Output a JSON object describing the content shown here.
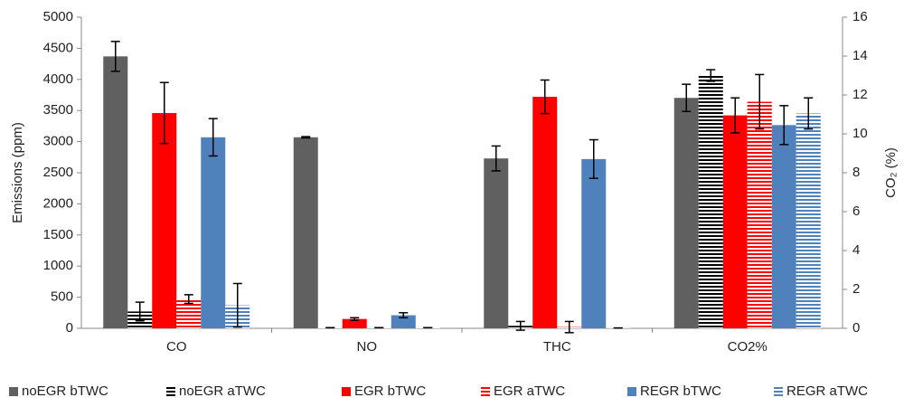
{
  "chart_data": {
    "type": "bar",
    "categories": [
      "CO",
      "NO",
      "THC",
      "CO2%"
    ],
    "category_axes": [
      "y",
      "y",
      "y",
      "y2"
    ],
    "ylabel": "Emissions (ppm)",
    "y2label": "CO₂ (%)",
    "ylim": [
      0,
      5000
    ],
    "yticks": [
      0,
      500,
      1000,
      1500,
      2000,
      2500,
      3000,
      3500,
      4000,
      4500,
      5000
    ],
    "y2lim": [
      0,
      16
    ],
    "y2ticks": [
      0,
      2,
      4,
      6,
      8,
      10,
      12,
      14,
      16
    ],
    "legend": "bottom",
    "series": [
      {
        "name": "noEGR bTWC",
        "color": "#606060",
        "pattern": "solid",
        "values": [
          4370,
          3070,
          2730,
          11.85
        ],
        "errors": [
          240,
          10,
          200,
          0.7
        ]
      },
      {
        "name": "noEGR aTWC",
        "color": "#000000",
        "pattern": "stripes",
        "values": [
          270,
          10,
          40,
          13.0
        ],
        "errors": [
          150,
          0,
          70,
          0.3
        ]
      },
      {
        "name": "EGR bTWC",
        "color": "#ff0000",
        "pattern": "solid",
        "values": [
          3460,
          150,
          3720,
          10.95
        ],
        "errors": [
          490,
          20,
          270,
          0.9
        ]
      },
      {
        "name": "EGR aTWC",
        "color": "#ff0000",
        "pattern": "stripes",
        "values": [
          470,
          10,
          20,
          11.65
        ],
        "errors": [
          70,
          0,
          90,
          1.4
        ]
      },
      {
        "name": "REGR bTWC",
        "color": "#4f81bd",
        "pattern": "solid",
        "values": [
          3070,
          210,
          2720,
          10.45
        ],
        "errors": [
          300,
          40,
          310,
          1.0
        ]
      },
      {
        "name": "REGR aTWC",
        "color": "#4f81bd",
        "pattern": "stripes",
        "values": [
          370,
          10,
          5,
          11.05
        ],
        "errors": [
          350,
          0,
          0,
          0.8
        ]
      }
    ]
  }
}
